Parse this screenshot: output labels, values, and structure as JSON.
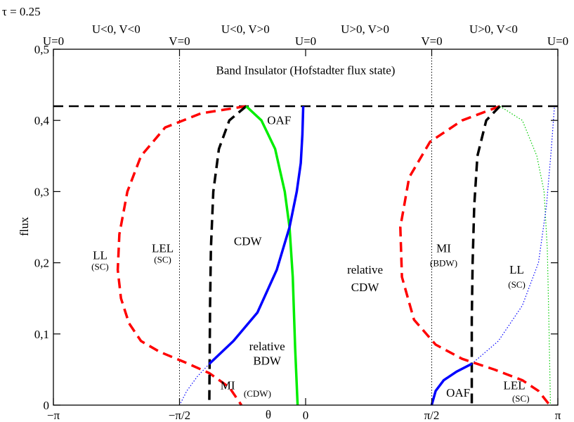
{
  "chart_data": {
    "type": "line",
    "corner_label": "τ = 0.25",
    "ylabel": "flux",
    "xlabel": "θ",
    "xlim": [
      -3.14159,
      3.14159
    ],
    "ylim": [
      0,
      0.5
    ],
    "xticks": [
      {
        "value": -3.14159,
        "label": "−π"
      },
      {
        "value": -1.5708,
        "label": "−π/2"
      },
      {
        "value": 0,
        "label": "0"
      },
      {
        "value": 1.5708,
        "label": "π/2"
      },
      {
        "value": 3.14159,
        "label": "π"
      }
    ],
    "yticks": [
      {
        "value": 0,
        "label": "0"
      },
      {
        "value": 0.1,
        "label": "0,1"
      },
      {
        "value": 0.2,
        "label": "0,2"
      },
      {
        "value": 0.3,
        "label": "0,3"
      },
      {
        "value": 0.4,
        "label": "0,4"
      },
      {
        "value": 0.5,
        "label": "0,5"
      }
    ],
    "top_markers": [
      {
        "value": -3.14159,
        "label": "U=0"
      },
      {
        "value": -1.5708,
        "label": "V=0"
      },
      {
        "value": 0,
        "label": "U=0"
      },
      {
        "value": 1.5708,
        "label": "V=0"
      },
      {
        "value": 3.14159,
        "label": "U=0"
      }
    ],
    "top_quadrants": [
      {
        "value": -2.36,
        "label": "U<0, V<0"
      },
      {
        "value": -0.75,
        "label": "U<0, V>0"
      },
      {
        "value": 0.74,
        "label": "U>0, V>0"
      },
      {
        "value": 2.34,
        "label": "U>0, V<0"
      }
    ],
    "reference_lines": [
      {
        "orientation": "vertical",
        "value": -1.5708,
        "style": "dotted",
        "color": "#000000"
      },
      {
        "orientation": "vertical",
        "value": 1.5708,
        "style": "dotted",
        "color": "#000000"
      },
      {
        "orientation": "horizontal",
        "value": 0.42,
        "style": "dashed",
        "color": "#000000"
      }
    ],
    "series": [
      {
        "color": "#ff0000",
        "style": "dashed",
        "width": 3.5,
        "x": [
          -0.74,
          -1.3,
          -1.75,
          -2.05,
          -2.22,
          -2.32,
          -2.34,
          -2.3,
          -2.2,
          -2.05,
          -1.82,
          -1.5,
          -1.2,
          -0.95,
          -0.8
        ],
        "y": [
          0.42,
          0.41,
          0.39,
          0.35,
          0.3,
          0.24,
          0.19,
          0.15,
          0.115,
          0.09,
          0.075,
          0.06,
          0.045,
          0.025,
          0.0
        ]
      },
      {
        "color": "#000000",
        "style": "dashed",
        "width": 3.5,
        "x": [
          -0.74,
          -0.95,
          -1.08,
          -1.15,
          -1.18,
          -1.19,
          -1.2
        ],
        "y": [
          0.42,
          0.4,
          0.36,
          0.3,
          0.22,
          0.14,
          0.0
        ]
      },
      {
        "color": "#00ee00",
        "style": "solid",
        "width": 3.5,
        "x": [
          -0.74,
          -0.55,
          -0.38,
          -0.26,
          -0.2,
          -0.16,
          -0.13,
          -0.1
        ],
        "y": [
          0.42,
          0.4,
          0.36,
          0.3,
          0.25,
          0.18,
          0.08,
          0.0
        ]
      },
      {
        "color": "#0000ff",
        "style": "solid",
        "width": 3.5,
        "x": [
          -0.03,
          -0.04,
          -0.06,
          -0.11,
          -0.2,
          -0.36,
          -0.6,
          -0.9,
          -1.2
        ],
        "y": [
          0.42,
          0.38,
          0.34,
          0.3,
          0.25,
          0.19,
          0.13,
          0.09,
          0.058
        ]
      },
      {
        "color": "#0000ff",
        "style": "dotted",
        "width": 1.2,
        "x": [
          -1.2,
          -1.35,
          -1.48,
          -1.57
        ],
        "y": [
          0.058,
          0.04,
          0.02,
          0.0
        ]
      },
      {
        "color": "#ff0000",
        "style": "dashed",
        "width": 3.5,
        "x": [
          2.42,
          1.95,
          1.55,
          1.29,
          1.18,
          1.2,
          1.35,
          1.62,
          1.95,
          2.35,
          2.7,
          2.9,
          3.04
        ],
        "y": [
          0.42,
          0.4,
          0.37,
          0.32,
          0.25,
          0.18,
          0.12,
          0.085,
          0.065,
          0.05,
          0.035,
          0.02,
          0.0
        ]
      },
      {
        "color": "#000000",
        "style": "dashed",
        "width": 3.5,
        "x": [
          2.42,
          2.25,
          2.14,
          2.1,
          2.08,
          2.07,
          2.07
        ],
        "y": [
          0.42,
          0.4,
          0.35,
          0.28,
          0.2,
          0.12,
          0.0
        ]
      },
      {
        "color": "#0000ff",
        "style": "solid",
        "width": 3.5,
        "x": [
          1.57,
          1.62,
          1.72,
          1.88,
          2.07
        ],
        "y": [
          0.0,
          0.02,
          0.035,
          0.047,
          0.058
        ]
      },
      {
        "color": "#00cc00",
        "style": "dotted",
        "width": 1.2,
        "x": [
          2.42,
          2.7,
          2.88,
          2.97,
          3.01,
          3.03,
          3.05
        ],
        "y": [
          0.42,
          0.4,
          0.35,
          0.3,
          0.22,
          0.12,
          0.0
        ]
      },
      {
        "color": "#0000ff",
        "style": "dotted",
        "width": 1.2,
        "x": [
          2.07,
          2.4,
          2.7,
          2.9,
          3.0,
          3.06,
          3.1
        ],
        "y": [
          0.058,
          0.09,
          0.14,
          0.2,
          0.28,
          0.36,
          0.42
        ]
      }
    ],
    "annotations": [
      {
        "text": "Band Insulator (Hofstadter flux state)",
        "x": 0.0,
        "y": 0.465,
        "size": "big"
      },
      {
        "text": "OAF",
        "x": -0.33,
        "y": 0.395,
        "size": "big"
      },
      {
        "text": "CDW",
        "x": -0.72,
        "y": 0.225,
        "size": "big"
      },
      {
        "text": "LL",
        "x": -2.56,
        "y": 0.205,
        "size": "big"
      },
      {
        "text": "(SC)",
        "x": -2.56,
        "y": 0.19,
        "size": "small"
      },
      {
        "text": "LEL",
        "x": -1.78,
        "y": 0.215,
        "size": "big"
      },
      {
        "text": "(SC)",
        "x": -1.78,
        "y": 0.2,
        "size": "small"
      },
      {
        "text": "relative",
        "x": 0.74,
        "y": 0.185,
        "size": "big"
      },
      {
        "text": "CDW",
        "x": 0.74,
        "y": 0.16,
        "size": "big"
      },
      {
        "text": "MI",
        "x": 1.72,
        "y": 0.215,
        "size": "big"
      },
      {
        "text": "(BDW)",
        "x": 1.72,
        "y": 0.195,
        "size": "small"
      },
      {
        "text": "LL",
        "x": 2.63,
        "y": 0.185,
        "size": "big"
      },
      {
        "text": "(SC)",
        "x": 2.63,
        "y": 0.165,
        "size": "small"
      },
      {
        "text": "relative",
        "x": -0.48,
        "y": 0.077,
        "size": "big"
      },
      {
        "text": "BDW",
        "x": -0.48,
        "y": 0.057,
        "size": "big"
      },
      {
        "text": "MI",
        "x": -0.97,
        "y": 0.022,
        "size": "big"
      },
      {
        "text": "(CDW)",
        "x": -0.6,
        "y": 0.012,
        "size": "small"
      },
      {
        "text": "OAF",
        "x": 1.9,
        "y": 0.012,
        "size": "big"
      },
      {
        "text": "LEL",
        "x": 2.6,
        "y": 0.022,
        "size": "big"
      },
      {
        "text": "(SC)",
        "x": 2.68,
        "y": 0.005,
        "size": "small"
      }
    ]
  }
}
